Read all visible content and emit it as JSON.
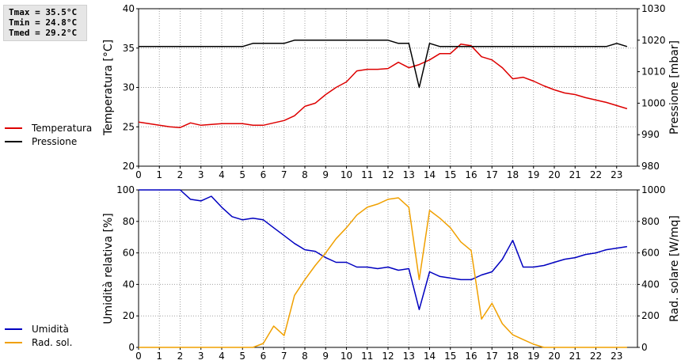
{
  "stats": {
    "tmax": "Tmax = 35.5°C",
    "tmin": "Tmin = 24.8°C",
    "tmed": "Tmed = 29.2°C"
  },
  "colors": {
    "temperatura": "#dd0000",
    "pressione": "#000000",
    "umidita": "#0000c0",
    "radiazione": "#f0a000",
    "grid": "#a0a0a0"
  },
  "chart_data": [
    {
      "type": "line",
      "legend": [
        "Temperatura",
        "Pressione"
      ],
      "ylabel_left": "Temperatura [°C]",
      "ylabel_right": "Pressione [mbar]",
      "xlim": [
        0,
        24
      ],
      "x_ticks": [
        "0",
        "1",
        "2",
        "3",
        "4",
        "5",
        "6",
        "7",
        "8",
        "9",
        "10",
        "11",
        "12",
        "13",
        "14",
        "15",
        "16",
        "17",
        "18",
        "19",
        "20",
        "21",
        "22",
        "23"
      ],
      "ylim_left": [
        20,
        40
      ],
      "yticks_left": [
        "20",
        "25",
        "30",
        "35",
        "40"
      ],
      "ylim_right": [
        980,
        1030
      ],
      "yticks_right": [
        "980",
        "990",
        "1000",
        "1010",
        "1020",
        "1030"
      ],
      "grid": true,
      "series": [
        {
          "name": "Temperatura",
          "axis": "left",
          "x": [
            0,
            0.5,
            1,
            1.5,
            2,
            2.5,
            3,
            3.5,
            4,
            4.5,
            5,
            5.5,
            6,
            6.5,
            7,
            7.5,
            8,
            8.5,
            9,
            9.5,
            10,
            10.5,
            11,
            11.5,
            12,
            12.5,
            13,
            13.5,
            14,
            14.5,
            15,
            15.5,
            16,
            16.5,
            17,
            17.5,
            18,
            18.5,
            19,
            19.5,
            20,
            20.5,
            21,
            21.5,
            22,
            22.5,
            23,
            23.5
          ],
          "values": [
            25.6,
            25.4,
            25.2,
            25.0,
            24.9,
            25.5,
            25.2,
            25.3,
            25.4,
            25.4,
            25.4,
            25.2,
            25.2,
            25.5,
            25.8,
            26.4,
            27.6,
            28.0,
            29.1,
            30.0,
            30.7,
            32.1,
            32.3,
            32.3,
            32.4,
            33.2,
            32.5,
            32.9,
            33.5,
            34.3,
            34.3,
            35.5,
            35.3,
            33.9,
            33.5,
            32.5,
            31.1,
            31.3,
            30.8,
            30.2,
            29.7,
            29.3,
            29.1,
            28.7,
            28.4,
            28.1,
            27.7,
            27.3
          ]
        },
        {
          "name": "Pressione",
          "axis": "right",
          "x": [
            0,
            0.5,
            1,
            1.5,
            2,
            2.5,
            3,
            3.5,
            4,
            4.5,
            5,
            5.5,
            6,
            6.5,
            7,
            7.5,
            8,
            8.5,
            9,
            9.5,
            10,
            10.5,
            11,
            11.5,
            12,
            12.5,
            13,
            13.5,
            14,
            14.5,
            15,
            15.5,
            16,
            16.5,
            17,
            17.5,
            18,
            18.5,
            19,
            19.5,
            20,
            20.5,
            21,
            21.5,
            22,
            22.5,
            23,
            23.5
          ],
          "values": [
            1018,
            1018,
            1018,
            1018,
            1018,
            1018,
            1018,
            1018,
            1018,
            1018,
            1018,
            1019,
            1019,
            1019,
            1019,
            1020,
            1020,
            1020,
            1020,
            1020,
            1020,
            1020,
            1020,
            1020,
            1020,
            1019,
            1019,
            1005,
            1019,
            1018,
            1018,
            1018,
            1018,
            1018,
            1018,
            1018,
            1018,
            1018,
            1018,
            1018,
            1018,
            1018,
            1018,
            1018,
            1018,
            1018,
            1019,
            1018
          ]
        }
      ]
    },
    {
      "type": "line",
      "legend": [
        "Umidità",
        "Rad. sol."
      ],
      "ylabel_left": "Umidità relativa [%]",
      "ylabel_right": "Rad. solare [W/mq]",
      "xlim": [
        0,
        24
      ],
      "x_ticks": [
        "0",
        "1",
        "2",
        "3",
        "4",
        "5",
        "6",
        "7",
        "8",
        "9",
        "10",
        "11",
        "12",
        "13",
        "14",
        "15",
        "16",
        "17",
        "18",
        "19",
        "20",
        "21",
        "22",
        "23"
      ],
      "ylim_left": [
        0,
        100
      ],
      "yticks_left": [
        "0",
        "20",
        "40",
        "60",
        "80",
        "100"
      ],
      "ylim_right": [
        0,
        1000
      ],
      "yticks_right": [
        "0",
        "200",
        "400",
        "600",
        "800",
        "1000"
      ],
      "grid": true,
      "series": [
        {
          "name": "Umidità",
          "axis": "left",
          "x": [
            0,
            0.5,
            1,
            1.5,
            2,
            2.5,
            3,
            3.5,
            4,
            4.5,
            5,
            5.5,
            6,
            6.5,
            7,
            7.5,
            8,
            8.5,
            9,
            9.5,
            10,
            10.5,
            11,
            11.5,
            12,
            12.5,
            13,
            13.5,
            14,
            14.5,
            15,
            15.5,
            16,
            16.5,
            17,
            17.5,
            18,
            18.5,
            19,
            19.5,
            20,
            20.5,
            21,
            21.5,
            22,
            22.5,
            23,
            23.5
          ],
          "values": [
            100,
            100,
            100,
            100,
            100,
            94,
            93,
            96,
            89,
            83,
            81,
            82,
            81,
            76,
            71,
            66,
            62,
            61,
            57,
            54,
            54,
            51,
            51,
            50,
            51,
            49,
            50,
            24,
            48,
            45,
            44,
            43,
            43,
            46,
            48,
            56,
            68,
            51,
            51,
            52,
            54,
            56,
            57,
            59,
            60,
            62,
            63,
            64
          ]
        },
        {
          "name": "Rad. sol.",
          "axis": "right",
          "x": [
            0,
            0.5,
            1,
            1.5,
            2,
            2.5,
            3,
            3.5,
            4,
            4.5,
            5,
            5.5,
            6,
            6.5,
            7,
            7.5,
            8,
            8.5,
            9,
            9.5,
            10,
            10.5,
            11,
            11.5,
            12,
            12.5,
            13,
            13.5,
            14,
            14.5,
            15,
            15.5,
            16,
            16.5,
            17,
            17.5,
            18,
            18.5,
            19,
            19.5,
            20,
            20.5,
            21,
            21.5,
            22,
            22.5,
            23,
            23.5
          ],
          "values": [
            0,
            0,
            0,
            0,
            0,
            0,
            0,
            0,
            0,
            0,
            0,
            0,
            25,
            135,
            75,
            330,
            430,
            520,
            600,
            690,
            760,
            840,
            890,
            910,
            940,
            950,
            890,
            430,
            870,
            820,
            760,
            670,
            615,
            180,
            280,
            150,
            80,
            50,
            20,
            0,
            0,
            0,
            0,
            0,
            0,
            0,
            0,
            0
          ]
        }
      ]
    }
  ]
}
